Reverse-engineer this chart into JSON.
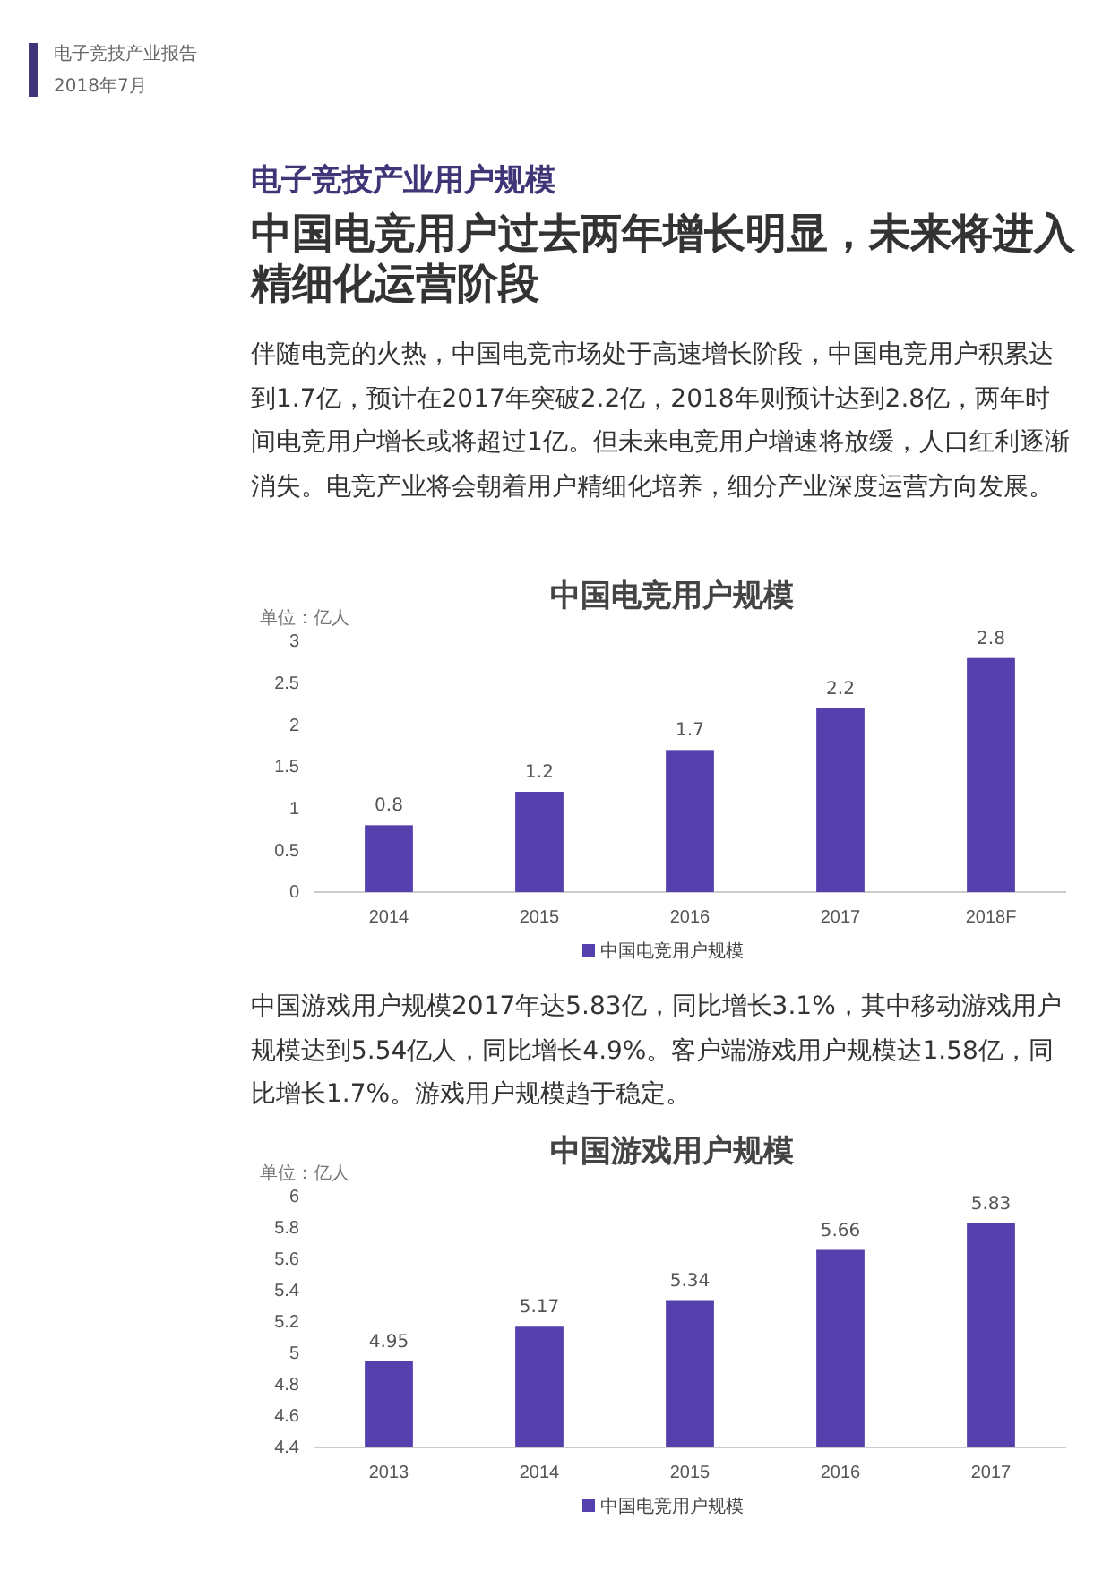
{
  "chart_data": [
    {
      "type": "bar",
      "title": "中国电竞用户规模",
      "ylabel": "单位：亿人",
      "annotations": [
        "电子竞技产业报告",
        "2018年7月",
        "电子竞技产业用户规模",
        "中国电竞用户过去两年增长明显，未来将进入精细化运营阶段",
        "伴随电竞的火热，中国电竞市场处于高速增长阶段，中国电竞用户积累达到1.7亿，预计在2017年突破2.2亿，2018年则预计达到2.8亿，两年时间电竞用户增长或将超过1亿。但未来电竞用户增速将放缓，人口红利逐渐消失。电竞产业将会朝着用户精细化培养，细分产业深度运营方向发展。"
      ],
      "categories": [
        "2014",
        "2015",
        "2016",
        "2017",
        "2018F"
      ],
      "series": [
        {
          "name": "中国电竞用户规模",
          "color": "#5540ae",
          "values": [
            0.8,
            1.2,
            1.7,
            2.2,
            2.8
          ]
        }
      ],
      "ylim": [
        0,
        3
      ],
      "yticks": [
        0,
        0.5,
        1,
        1.5,
        2,
        2.5,
        3
      ],
      "data_labels": true,
      "legend": "bottom",
      "grid": false
    },
    {
      "type": "bar",
      "title": "中国游戏用户规模",
      "ylabel": "单位：亿人",
      "annotations": [
        "中国游戏用户规模2017年达5.83亿，同比增长3.1%，其中移动游戏用户规模达到5.54亿人，同比增长4.9%。客户端游戏用户规模达1.58亿，同比增长1.7%。游戏用户规模趋于稳定。"
      ],
      "categories": [
        "2013",
        "2014",
        "2015",
        "2016",
        "2017"
      ],
      "series": [
        {
          "name": "中国电竞用户规模",
          "color": "#5540ae",
          "values": [
            4.95,
            5.17,
            5.34,
            5.66,
            5.83
          ]
        }
      ],
      "ylim": [
        4.4,
        6
      ],
      "yticks": [
        4.4,
        4.6,
        4.8,
        5,
        5.2,
        5.4,
        5.6,
        5.8,
        6
      ],
      "data_labels": true,
      "legend": "bottom",
      "grid": false
    }
  ]
}
